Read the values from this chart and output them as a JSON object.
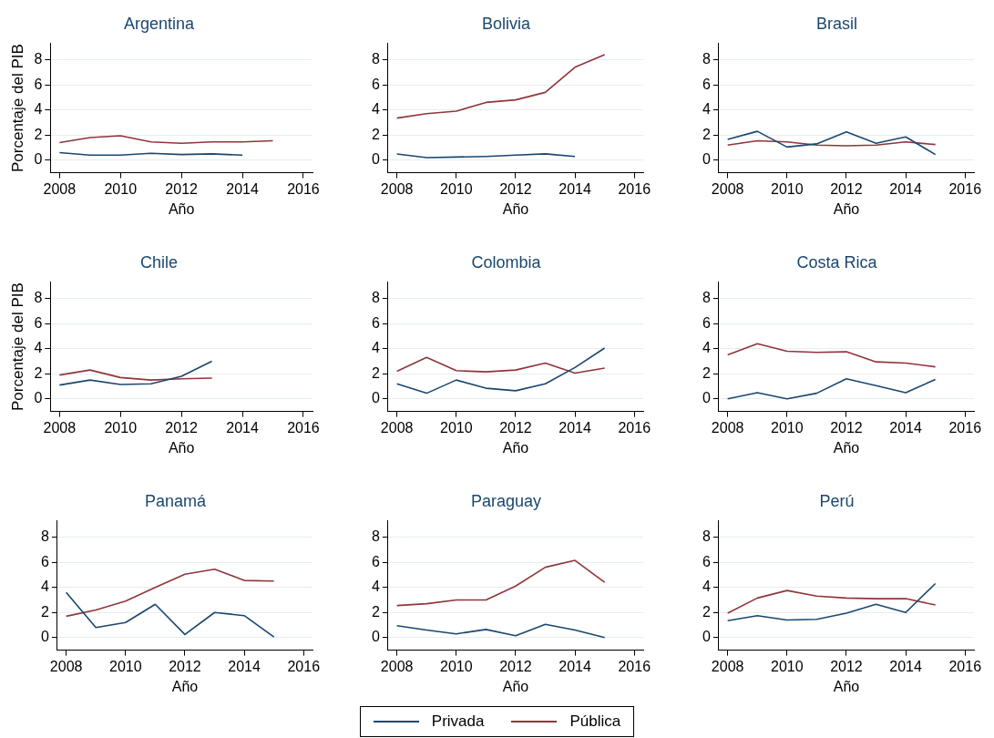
{
  "chart_data": [
    {
      "type": "line",
      "title": "Argentina",
      "xlabel": "Año",
      "ylabel": "Porcentaje del PIB",
      "x": [
        2008,
        2009,
        2010,
        2011,
        2012,
        2013,
        2014,
        2015
      ],
      "xlim": [
        2007.7,
        2016.3
      ],
      "xticks": [
        2008,
        2010,
        2012,
        2014,
        2016
      ],
      "ylim": [
        -1,
        9.3
      ],
      "yticks": [
        0,
        2,
        4,
        6,
        8
      ],
      "grid": "y",
      "legend": "bottom",
      "series": [
        {
          "name": "Privada",
          "color": "#1a476f",
          "values": [
            0.6,
            0.4,
            0.4,
            0.55,
            0.45,
            0.5,
            0.4,
            null
          ]
        },
        {
          "name": "Pública",
          "color": "#90353b",
          "values": [
            1.4,
            1.8,
            1.95,
            1.45,
            1.35,
            1.45,
            1.45,
            1.55
          ]
        }
      ]
    },
    {
      "type": "line",
      "title": "Bolivia",
      "xlabel": "Año",
      "x": [
        2008,
        2009,
        2010,
        2011,
        2012,
        2013,
        2014,
        2015
      ],
      "xlim": [
        2007.7,
        2016.3
      ],
      "xticks": [
        2008,
        2010,
        2012,
        2014,
        2016
      ],
      "ylim": [
        -1,
        9.3
      ],
      "yticks": [
        0,
        2,
        4,
        6,
        8
      ],
      "grid": "y",
      "series": [
        {
          "color": "#1a476f",
          "values": [
            0.5,
            0.2,
            0.25,
            0.3,
            0.4,
            0.5,
            0.3,
            null
          ]
        },
        {
          "color": "#90353b",
          "values": [
            3.35,
            3.7,
            3.9,
            4.6,
            4.8,
            5.4,
            7.4,
            8.4
          ]
        }
      ]
    },
    {
      "type": "line",
      "title": "Brasil",
      "xlabel": "Año",
      "x": [
        2008,
        2009,
        2010,
        2011,
        2012,
        2013,
        2014,
        2015
      ],
      "xlim": [
        2007.7,
        2016.3
      ],
      "xticks": [
        2008,
        2010,
        2012,
        2014,
        2016
      ],
      "ylim": [
        -1,
        9.3
      ],
      "yticks": [
        0,
        2,
        4,
        6,
        8
      ],
      "grid": "y",
      "series": [
        {
          "color": "#1a476f",
          "values": [
            1.65,
            2.3,
            1.05,
            1.3,
            2.25,
            1.35,
            1.85,
            0.45
          ]
        },
        {
          "color": "#90353b",
          "values": [
            1.2,
            1.55,
            1.45,
            1.2,
            1.15,
            1.2,
            1.45,
            1.25
          ]
        }
      ]
    },
    {
      "type": "line",
      "title": "Chile",
      "xlabel": "Año",
      "ylabel": "Porcentaje del PIB",
      "x": [
        2008,
        2009,
        2010,
        2011,
        2012,
        2013
      ],
      "xlim": [
        2007.7,
        2016.3
      ],
      "xticks": [
        2008,
        2010,
        2012,
        2014,
        2016
      ],
      "ylim": [
        -1,
        9.3
      ],
      "yticks": [
        0,
        2,
        4,
        6,
        8
      ],
      "grid": "y",
      "series": [
        {
          "color": "#1a476f",
          "values": [
            1.1,
            1.5,
            1.15,
            1.2,
            1.8,
            3.0
          ]
        },
        {
          "color": "#90353b",
          "values": [
            1.9,
            2.3,
            1.7,
            1.5,
            1.6,
            1.65
          ]
        }
      ]
    },
    {
      "type": "line",
      "title": "Colombia",
      "xlabel": "Año",
      "x": [
        2008,
        2009,
        2010,
        2011,
        2012,
        2013,
        2014,
        2015
      ],
      "xlim": [
        2007.7,
        2016.3
      ],
      "xticks": [
        2008,
        2010,
        2012,
        2014,
        2016
      ],
      "ylim": [
        -1,
        9.3
      ],
      "yticks": [
        0,
        2,
        4,
        6,
        8
      ],
      "grid": "y",
      "series": [
        {
          "color": "#1a476f",
          "values": [
            1.2,
            0.45,
            1.5,
            0.85,
            0.65,
            1.2,
            2.5,
            4.05
          ]
        },
        {
          "color": "#90353b",
          "values": [
            2.2,
            3.3,
            2.25,
            2.15,
            2.3,
            2.85,
            2.05,
            2.45
          ]
        }
      ]
    },
    {
      "type": "line",
      "title": "Costa Rica",
      "xlabel": "Año",
      "x": [
        2008,
        2009,
        2010,
        2011,
        2012,
        2013,
        2014,
        2015
      ],
      "xlim": [
        2007.7,
        2016.3
      ],
      "xticks": [
        2008,
        2010,
        2012,
        2014,
        2016
      ],
      "ylim": [
        -1,
        9.3
      ],
      "yticks": [
        0,
        2,
        4,
        6,
        8
      ],
      "grid": "y",
      "series": [
        {
          "color": "#1a476f",
          "values": [
            0.0,
            0.5,
            0.0,
            0.45,
            1.6,
            1.05,
            0.5,
            1.55
          ]
        },
        {
          "color": "#90353b",
          "values": [
            3.5,
            4.4,
            3.8,
            3.7,
            3.75,
            2.95,
            2.85,
            2.55
          ]
        }
      ]
    },
    {
      "type": "line",
      "title": "Panamá",
      "xlabel": "Año",
      "x": [
        2008,
        2009,
        2010,
        2011,
        2012,
        2013,
        2014,
        2015
      ],
      "xlim": [
        2007.7,
        2016.3
      ],
      "xticks": [
        2008,
        2010,
        2012,
        2014,
        2016
      ],
      "ylim": [
        -1,
        9.3
      ],
      "yticks": [
        0,
        2,
        4,
        6,
        8
      ],
      "grid": "y",
      "series": [
        {
          "color": "#1a476f",
          "values": [
            3.6,
            0.8,
            1.2,
            2.65,
            0.25,
            2.0,
            1.75,
            0.05
          ]
        },
        {
          "color": "#90353b",
          "values": [
            1.7,
            2.2,
            2.9,
            4.0,
            5.05,
            5.45,
            4.55,
            4.5
          ]
        }
      ]
    },
    {
      "type": "line",
      "title": "Paraguay",
      "xlabel": "Año",
      "x": [
        2008,
        2009,
        2010,
        2011,
        2012,
        2013,
        2014,
        2015
      ],
      "xlim": [
        2007.7,
        2016.3
      ],
      "xticks": [
        2008,
        2010,
        2012,
        2014,
        2016
      ],
      "ylim": [
        -1,
        9.3
      ],
      "yticks": [
        0,
        2,
        4,
        6,
        8
      ],
      "grid": "y",
      "series": [
        {
          "color": "#1a476f",
          "values": [
            0.95,
            0.6,
            0.3,
            0.65,
            0.15,
            1.05,
            0.6,
            0.0
          ]
        },
        {
          "color": "#90353b",
          "values": [
            2.55,
            2.7,
            3.0,
            3.0,
            4.1,
            5.6,
            6.15,
            4.4
          ]
        }
      ]
    },
    {
      "type": "line",
      "title": "Perú",
      "xlabel": "Año",
      "x": [
        2008,
        2009,
        2010,
        2011,
        2012,
        2013,
        2014,
        2015
      ],
      "xlim": [
        2007.7,
        2016.3
      ],
      "xticks": [
        2008,
        2010,
        2012,
        2014,
        2016
      ],
      "ylim": [
        -1,
        9.3
      ],
      "yticks": [
        0,
        2,
        4,
        6,
        8
      ],
      "grid": "y",
      "series": [
        {
          "color": "#1a476f",
          "values": [
            1.35,
            1.75,
            1.4,
            1.45,
            1.95,
            2.65,
            2.0,
            4.3
          ]
        },
        {
          "color": "#90353b",
          "values": [
            1.95,
            3.15,
            3.75,
            3.3,
            3.15,
            3.1,
            3.1,
            2.6
          ]
        }
      ]
    }
  ]
}
